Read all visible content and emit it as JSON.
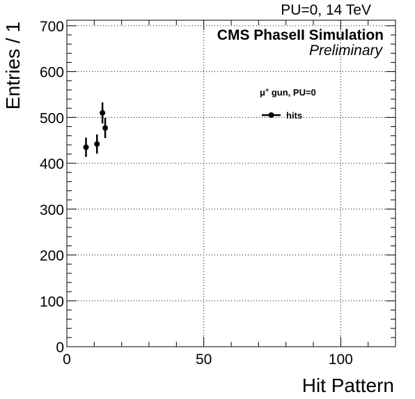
{
  "header": {
    "top_right": "PU=0, 14 TeV",
    "experiment": "CMS PhaseII Simulation",
    "status": "Preliminary"
  },
  "legend": {
    "header_prefix": "μ",
    "header_sup": "+",
    "header_suffix": " gun, PU=0",
    "placement": "top-right"
  },
  "chart_data": {
    "type": "scatter",
    "xlabel": "Hit Pattern",
    "ylabel": "Entries / 1",
    "xlim": [
      0,
      120
    ],
    "ylim": [
      0,
      712
    ],
    "grid": true,
    "x_ticks": [
      0,
      50,
      100
    ],
    "y_ticks": [
      0,
      100,
      200,
      300,
      400,
      500,
      600,
      700
    ],
    "series": [
      {
        "name": "hits",
        "color": "#000000",
        "points": [
          {
            "x": 7,
            "y": 435,
            "err": 21
          },
          {
            "x": 11,
            "y": 442,
            "err": 21
          },
          {
            "x": 13,
            "y": 510,
            "err": 23
          },
          {
            "x": 14,
            "y": 477,
            "err": 22
          }
        ]
      }
    ]
  }
}
